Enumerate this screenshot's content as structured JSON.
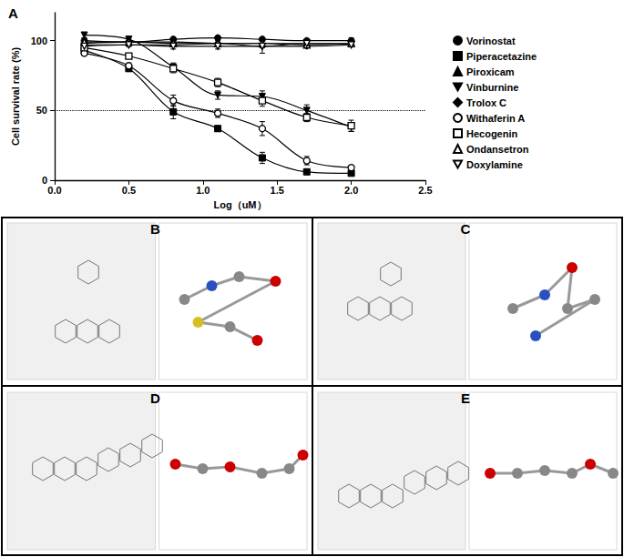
{
  "chart_data": {
    "type": "line",
    "title": "A",
    "x_label": "Log（uM）",
    "y_label": "Cell survival rate (%)",
    "x": [
      0.2,
      0.5,
      0.8,
      1.1,
      1.4,
      1.7,
      2.0
    ],
    "xlim": [
      0,
      2.5
    ],
    "xticks": [
      {
        "value": 0,
        "label": "0.0"
      },
      {
        "value": 0.5,
        "label": "0.5"
      },
      {
        "value": 1,
        "label": "1.0"
      },
      {
        "value": 1.5,
        "label": "1.5"
      },
      {
        "value": 2,
        "label": "2.0"
      },
      {
        "value": 2.5,
        "label": "2.5"
      }
    ],
    "ylim": [
      0,
      120
    ],
    "yticks": [
      0,
      50,
      100
    ],
    "threshold": 50,
    "legend": "right",
    "series": [
      {
        "name": "Vorinostat",
        "color": "#000000",
        "marker": "circle",
        "values": [
          100,
          99,
          101,
          102,
          101,
          100,
          100
        ],
        "errors": [
          2,
          1,
          1,
          1,
          1,
          1,
          2
        ]
      },
      {
        "name": "Piperacetazine",
        "color": "#000000",
        "marker": "square",
        "values": [
          93,
          80,
          49,
          37,
          16,
          6,
          5
        ],
        "errors": [
          2,
          2,
          5,
          2,
          4,
          1,
          1
        ]
      },
      {
        "name": "Piroxicam",
        "color": "#000000",
        "marker": "triangle",
        "values": [
          98,
          99,
          99,
          98,
          98,
          98,
          98
        ],
        "errors": [
          2,
          1,
          1,
          1,
          2,
          1,
          2
        ]
      },
      {
        "name": "Vinburnine",
        "color": "#000000",
        "marker": "triangle-down",
        "values": [
          104,
          101,
          81,
          61,
          60,
          50,
          38
        ],
        "errors": [
          2,
          2,
          3,
          3,
          4,
          4,
          3
        ]
      },
      {
        "name": "Trolox C",
        "color": "#000000",
        "marker": "diamond",
        "values": [
          97,
          97,
          97,
          98,
          96,
          96,
          97
        ],
        "errors": [
          1,
          1,
          1,
          1,
          1,
          1,
          1
        ]
      },
      {
        "name": "Withaferin A",
        "color": "#000000",
        "marker": "circle-open",
        "values": [
          91,
          82,
          57,
          48,
          37,
          14,
          9
        ],
        "errors": [
          1,
          2,
          4,
          3,
          5,
          3,
          1
        ]
      },
      {
        "name": "Hecogenin",
        "color": "#000000",
        "marker": "square-open",
        "values": [
          95,
          89,
          80,
          70,
          57,
          45,
          39
        ],
        "errors": [
          2,
          2,
          3,
          3,
          4,
          3,
          4
        ]
      },
      {
        "name": "Ondansetron",
        "color": "#000000",
        "marker": "triangle-open",
        "values": [
          99,
          99,
          98,
          98,
          98,
          97,
          98
        ],
        "errors": [
          2,
          2,
          2,
          2,
          2,
          2,
          2
        ]
      },
      {
        "name": "Doxylamine",
        "color": "#000000",
        "marker": "triangle-down-open",
        "values": [
          96,
          97,
          96,
          96,
          96,
          98,
          97
        ],
        "errors": [
          2,
          1,
          2,
          2,
          5,
          2,
          1
        ]
      }
    ]
  },
  "panels": [
    {
      "label": "B"
    },
    {
      "label": "C"
    },
    {
      "label": "D"
    },
    {
      "label": "E"
    }
  ]
}
